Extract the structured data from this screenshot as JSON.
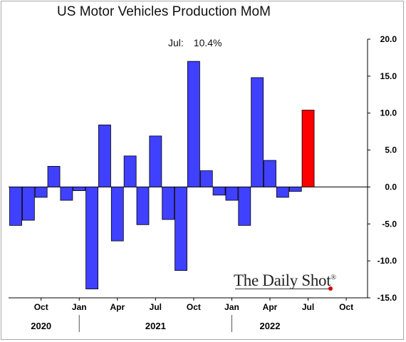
{
  "chart_data": {
    "type": "bar",
    "title": "US Motor Vehicles Production MoM",
    "annotation": {
      "label": "Jul:",
      "value": "10.4%"
    },
    "series": [
      {
        "values": [
          -5.2,
          -4.5,
          -1.4,
          2.8,
          -1.8,
          -0.5,
          -13.8,
          8.4,
          -7.3,
          4.2,
          -5.1,
          6.9,
          -4.4,
          -11.3,
          17.0,
          2.2,
          -1.1,
          -1.8,
          -5.2,
          14.8,
          3.6,
          -1.4,
          -0.6,
          10.4
        ],
        "highlight_color": "#ff0000"
      }
    ],
    "categories": [
      "2020-08",
      "2020-09",
      "2020-10",
      "2020-11",
      "2020-12",
      "2021-01",
      "2021-02",
      "2021-03",
      "2021-04",
      "2021-05",
      "2021-06",
      "2021-07",
      "2021-08",
      "2021-09",
      "2021-10",
      "2021-11",
      "2021-12",
      "2022-01",
      "2022-02",
      "2022-03",
      "2022-04",
      "2022-05",
      "2022-06",
      "2022-07"
    ],
    "highlight_last": true,
    "colors": {
      "bar": "#4040ff",
      "highlight": "#ff0000",
      "bar_outline": "#000000"
    },
    "ylim": [
      -15,
      20
    ],
    "yticks": [
      "20.0",
      "15.0",
      "10.0",
      "5.0",
      "0.0",
      "-5.0",
      "-10.0",
      "-15.0"
    ],
    "ytick_values": [
      20,
      15,
      10,
      5,
      0,
      -5,
      -10,
      -15
    ],
    "y_axis_side": "right",
    "month_ticks": [
      "Oct",
      "Jan",
      "Apr",
      "Jul",
      "Oct",
      "Jan",
      "Apr",
      "Jul",
      "Oct"
    ],
    "year_labels": [
      "2020",
      "2021",
      "2022"
    ],
    "grid": false
  },
  "watermark": {
    "text": "The Daily Shot",
    "mark": "®"
  }
}
